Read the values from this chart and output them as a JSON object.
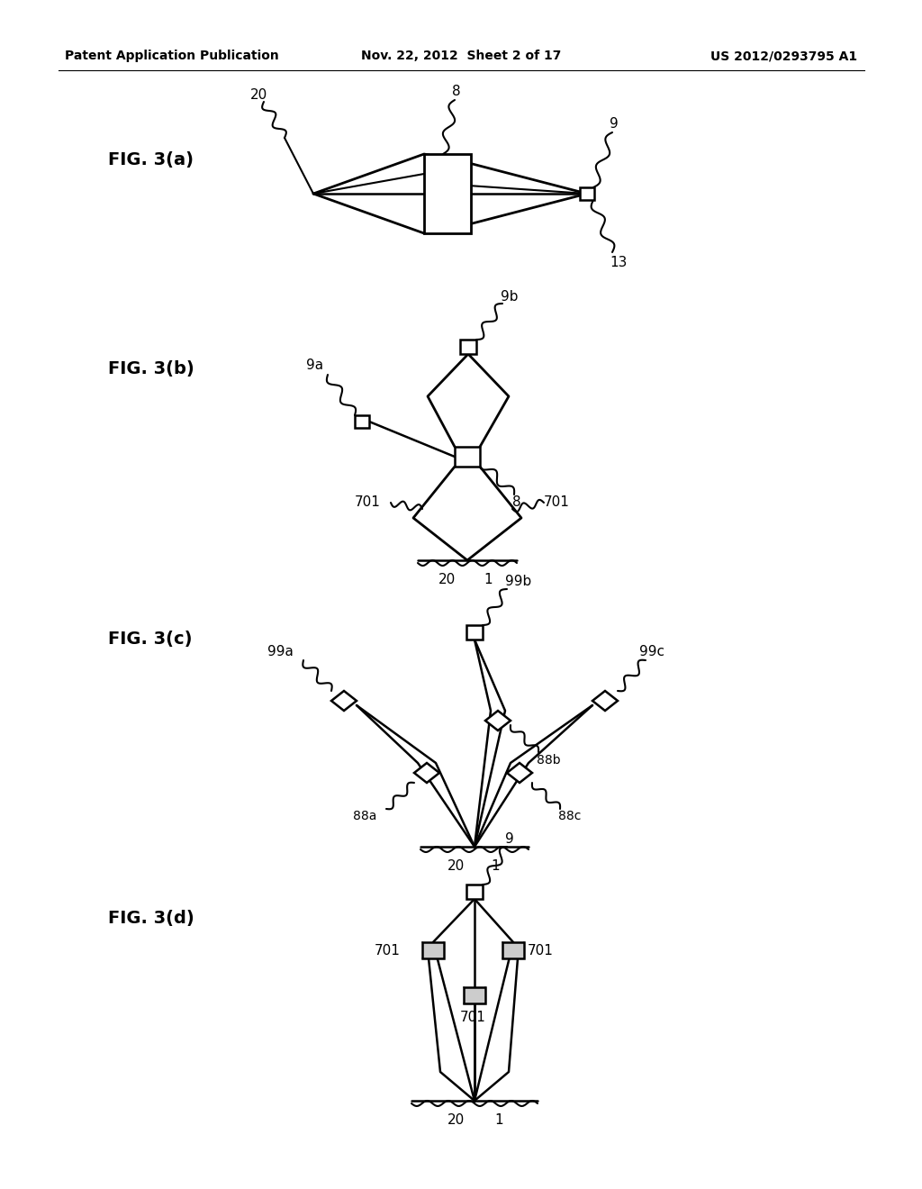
{
  "bg_color": "#ffffff",
  "header_left": "Patent Application Publication",
  "header_mid": "Nov. 22, 2012  Sheet 2 of 17",
  "header_right": "US 2012/0293795 A1"
}
